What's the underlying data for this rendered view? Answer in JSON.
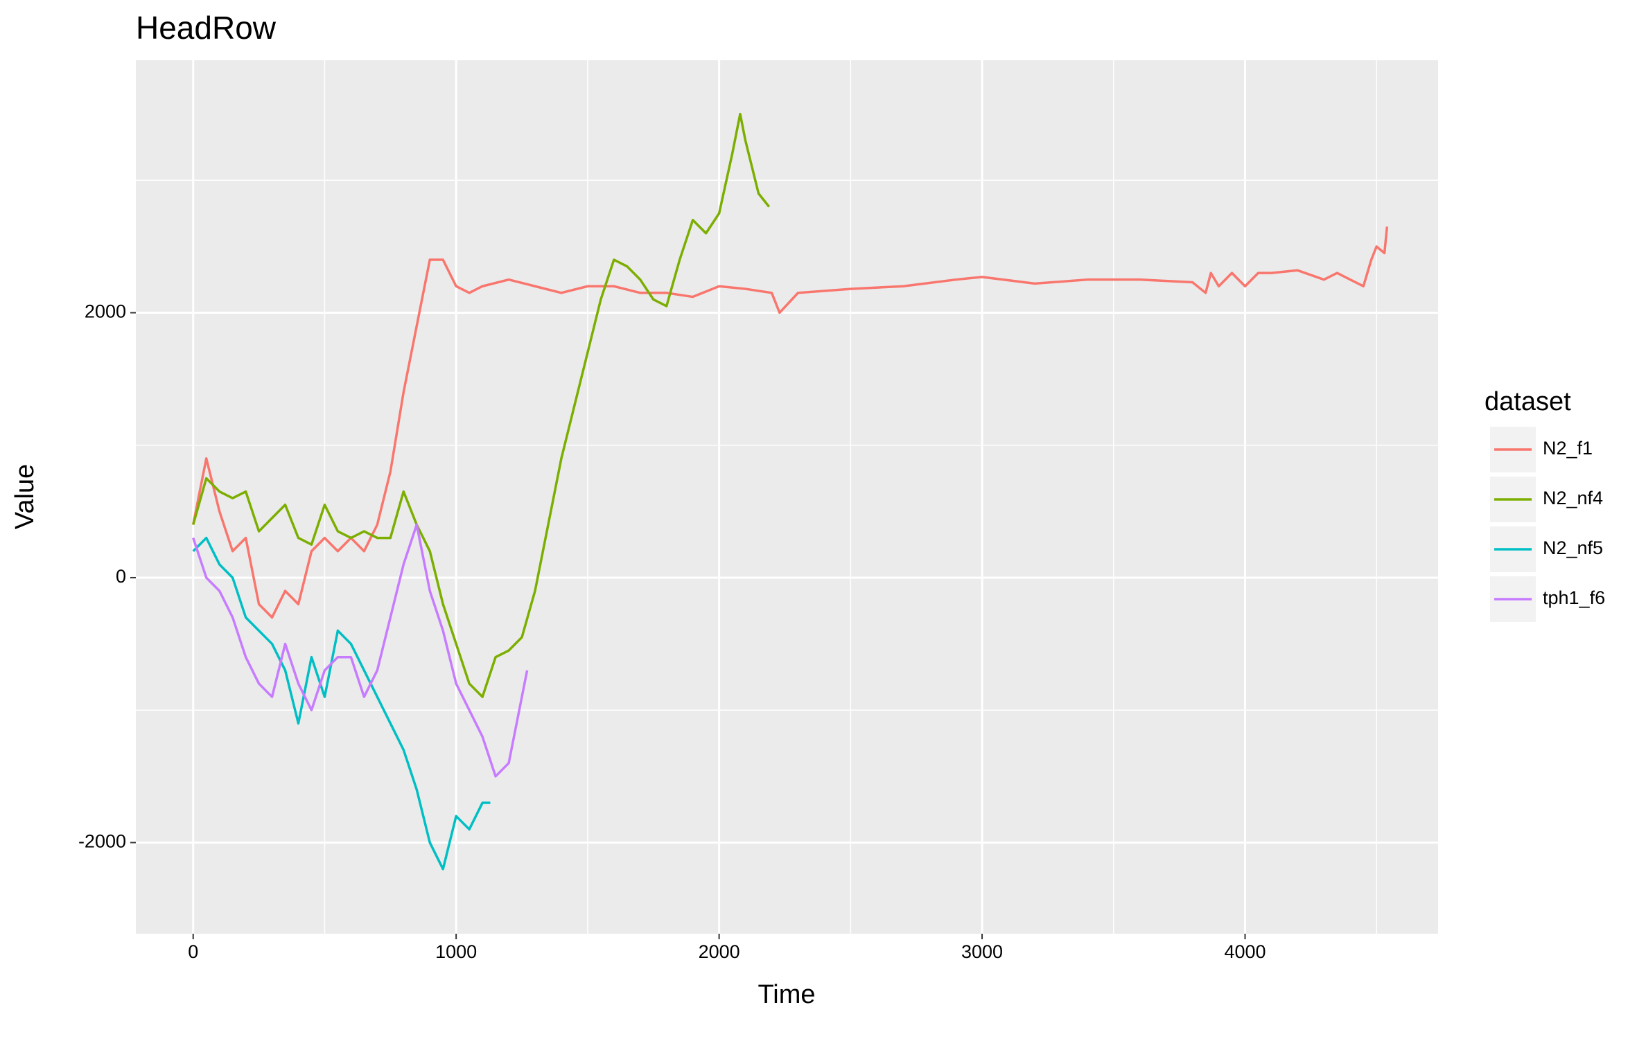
{
  "chart_data": {
    "type": "line",
    "title": "HeadRow",
    "x_label": "Time",
    "y_label": "Value",
    "legend_title": "dataset",
    "legend_position": "right",
    "grid": true,
    "xlim": [
      -218,
      4734
    ],
    "ylim": [
      -2688,
      3906
    ],
    "xticks": [
      0,
      1000,
      2000,
      3000,
      4000
    ],
    "yticks": [
      -2000,
      0,
      2000
    ],
    "x_minor_breaks": [
      500,
      1500,
      2500,
      3500,
      4500
    ],
    "y_minor_breaks": [
      -1000,
      1000,
      3000
    ],
    "series": [
      {
        "name": "N2_f1",
        "color": "#F8766D",
        "x": [
          0,
          50,
          100,
          150,
          200,
          250,
          300,
          350,
          400,
          450,
          500,
          550,
          600,
          650,
          700,
          750,
          800,
          850,
          900,
          950,
          1000,
          1050,
          1100,
          1200,
          1300,
          1400,
          1500,
          1600,
          1700,
          1800,
          1900,
          2000,
          2100,
          2200,
          2230,
          2300,
          2500,
          2700,
          2900,
          3000,
          3200,
          3400,
          3600,
          3800,
          3850,
          3870,
          3900,
          3950,
          4000,
          4050,
          4100,
          4200,
          4300,
          4350,
          4400,
          4450,
          4480,
          4500,
          4530,
          4540
        ],
        "values": [
          400,
          900,
          500,
          200,
          300,
          -200,
          -300,
          -100,
          -200,
          200,
          300,
          200,
          300,
          200,
          400,
          800,
          1400,
          1900,
          2400,
          2400,
          2200,
          2150,
          2200,
          2250,
          2200,
          2150,
          2200,
          2200,
          2150,
          2150,
          2120,
          2200,
          2180,
          2150,
          2000,
          2150,
          2180,
          2200,
          2250,
          2270,
          2220,
          2250,
          2250,
          2230,
          2150,
          2300,
          2200,
          2300,
          2200,
          2300,
          2300,
          2320,
          2250,
          2300,
          2250,
          2200,
          2400,
          2500,
          2450,
          2650
        ]
      },
      {
        "name": "N2_nf4",
        "color": "#7CAE00",
        "x": [
          0,
          50,
          100,
          150,
          200,
          250,
          300,
          350,
          400,
          450,
          500,
          550,
          600,
          650,
          700,
          750,
          800,
          850,
          900,
          950,
          1000,
          1050,
          1100,
          1150,
          1200,
          1250,
          1300,
          1350,
          1400,
          1450,
          1500,
          1550,
          1600,
          1650,
          1700,
          1750,
          1800,
          1850,
          1900,
          1950,
          2000,
          2050,
          2080,
          2100,
          2150,
          2190
        ],
        "values": [
          400,
          750,
          650,
          600,
          650,
          350,
          450,
          550,
          300,
          250,
          550,
          350,
          300,
          350,
          300,
          300,
          650,
          400,
          200,
          -200,
          -500,
          -800,
          -900,
          -600,
          -550,
          -450,
          -100,
          400,
          900,
          1300,
          1700,
          2100,
          2400,
          2350,
          2250,
          2100,
          2050,
          2400,
          2700,
          2600,
          2750,
          3200,
          3500,
          3300,
          2900,
          2800
        ]
      },
      {
        "name": "N2_nf5",
        "color": "#00BFC4",
        "x": [
          0,
          50,
          100,
          150,
          200,
          250,
          300,
          350,
          400,
          450,
          500,
          550,
          600,
          650,
          700,
          750,
          800,
          850,
          900,
          950,
          1000,
          1050,
          1100,
          1130
        ],
        "values": [
          200,
          300,
          100,
          0,
          -300,
          -400,
          -500,
          -700,
          -1100,
          -600,
          -900,
          -400,
          -500,
          -700,
          -900,
          -1100,
          -1300,
          -1600,
          -2000,
          -2200,
          -1800,
          -1900,
          -1700,
          -1700
        ]
      },
      {
        "name": "tph1_f6",
        "color": "#C77CFF",
        "x": [
          0,
          50,
          100,
          150,
          200,
          250,
          300,
          350,
          400,
          450,
          500,
          550,
          600,
          650,
          700,
          750,
          800,
          850,
          900,
          950,
          1000,
          1050,
          1100,
          1150,
          1200,
          1250,
          1270
        ],
        "values": [
          300,
          0,
          -100,
          -300,
          -600,
          -800,
          -900,
          -500,
          -800,
          -1000,
          -700,
          -600,
          -600,
          -900,
          -700,
          -300,
          100,
          400,
          -100,
          -400,
          -800,
          -1000,
          -1200,
          -1500,
          -1400,
          -900,
          -700
        ]
      }
    ]
  }
}
